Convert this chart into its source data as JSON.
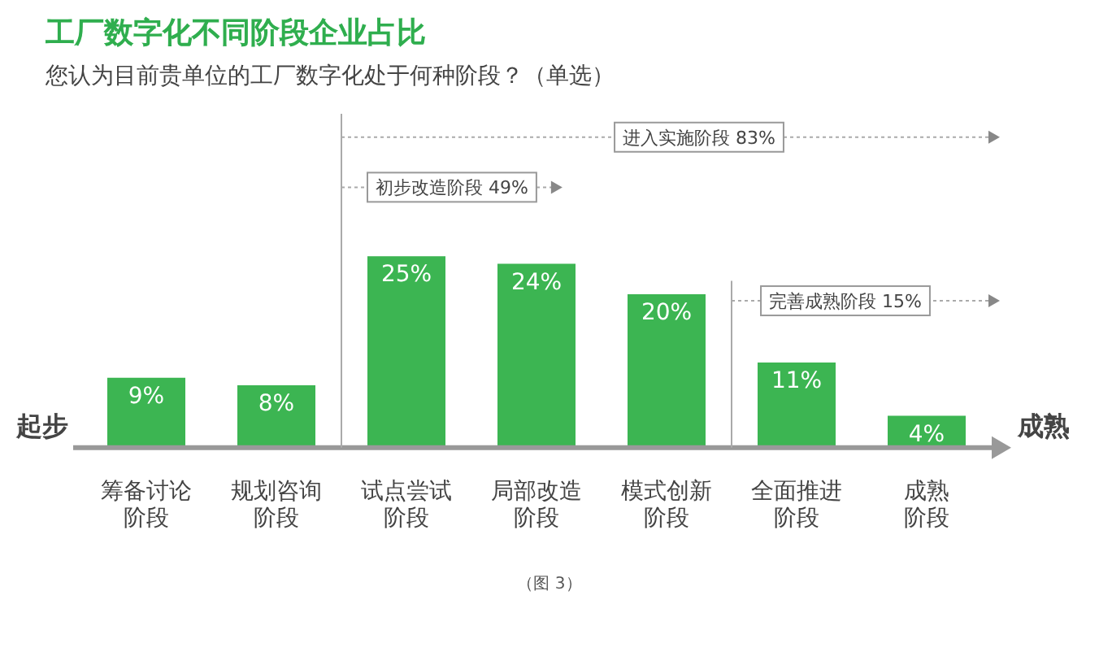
{
  "chart_data": {
    "type": "bar",
    "title": "工厂数字化不同阶段企业占比",
    "subtitle": "您认为目前贵单位的工厂数字化处于何种阶段？（单选）",
    "categories": [
      "筹备讨论阶段",
      "规划咨询阶段",
      "试点尝试阶段",
      "局部改造阶段",
      "模式创新阶段",
      "全面推进阶段",
      "成熟阶段"
    ],
    "values": [
      9,
      8,
      25,
      24,
      20,
      11,
      4
    ],
    "value_labels": [
      "9%",
      "8%",
      "25%",
      "24%",
      "20%",
      "11%",
      "4%"
    ],
    "color": "#3cb552",
    "annotations": [
      "进入实施阶段 83%",
      "初步改造阶段 49%",
      "完善成熟阶段 15%",
      "起步",
      "成熟",
      "（图 3）"
    ]
  }
}
